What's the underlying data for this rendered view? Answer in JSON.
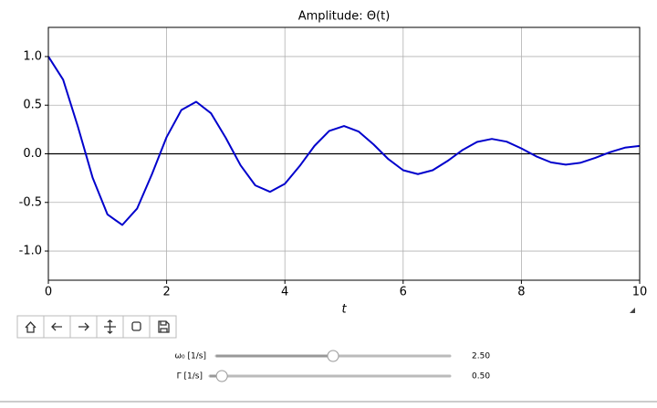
{
  "chart_data": {
    "type": "line",
    "title": "Amplitude: Θ(t)",
    "x_label": "t",
    "x": [
      0,
      0.25,
      0.5,
      0.75,
      1,
      1.25,
      1.5,
      1.75,
      2,
      2.25,
      2.5,
      2.75,
      3,
      3.25,
      3.5,
      3.75,
      4,
      4.25,
      4.5,
      4.75,
      5,
      5.25,
      5.5,
      5.75,
      6,
      6.25,
      6.5,
      6.75,
      7,
      7.25,
      7.5,
      7.75,
      8,
      8.25,
      8.5,
      8.75,
      9,
      9.25,
      9.5,
      9.75,
      10
    ],
    "values": [
      1,
      0.762,
      0.278,
      -0.248,
      -0.624,
      -0.732,
      -0.564,
      -0.212,
      0.172,
      0.451,
      0.535,
      0.417,
      0.164,
      -0.118,
      -0.325,
      -0.391,
      -0.309,
      -0.126,
      0.081,
      0.235,
      0.286,
      0.228,
      0.096,
      -0.055,
      -0.169,
      -0.209,
      -0.169,
      -0.074,
      0.037,
      0.122,
      0.153,
      0.125,
      0.055,
      -0.026,
      -0.088,
      -0.111,
      -0.092,
      -0.042,
      0.017,
      0.063,
      0.081
    ],
    "color": "#0000cc",
    "hline": 0,
    "xlim": [
      0,
      10
    ],
    "xticks": [
      0,
      2,
      4,
      6,
      8,
      10
    ],
    "ylim": [
      -1.3,
      1.3
    ],
    "yticks": [
      {
        "value": -1,
        "label": "-1.0"
      },
      {
        "value": -0.5,
        "label": "-0.5"
      },
      {
        "value": 0,
        "label": "0.0"
      },
      {
        "value": 0.5,
        "label": "0.5"
      },
      {
        "value": 1,
        "label": "1.0"
      }
    ],
    "grid": true
  },
  "sliders": [
    {
      "label": "ω₀ [1/s]",
      "value": 2.5,
      "value_label": "2.50",
      "range": [
        0,
        5
      ]
    },
    {
      "label": "Γ [1/s]",
      "value": 0.5,
      "value_label": "0.50",
      "range": [
        0,
        10
      ]
    }
  ]
}
